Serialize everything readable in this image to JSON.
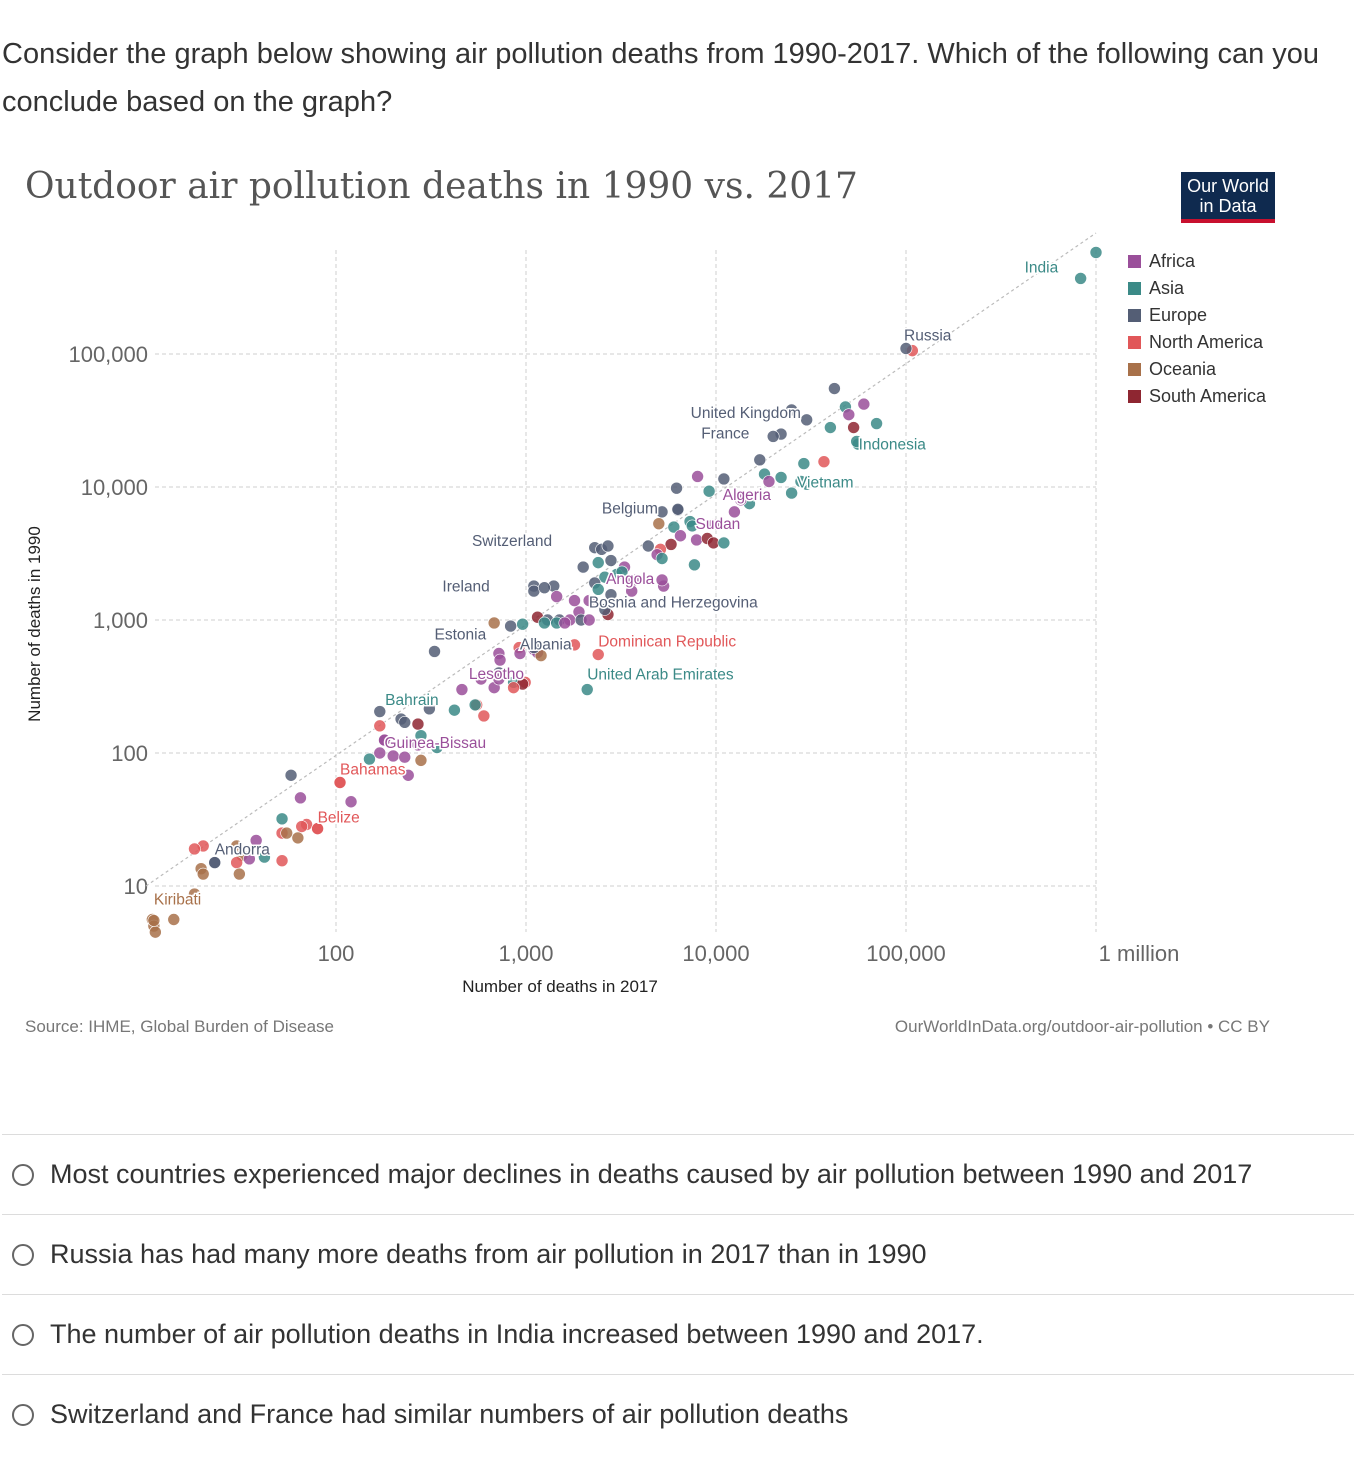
{
  "question": {
    "text": "Consider the graph below showing air pollution deaths from 1990-2017. Which of the following can you conclude based on the graph?"
  },
  "logo": {
    "line1": "Our World",
    "line2": "in Data"
  },
  "chart_data": {
    "type": "scatter",
    "title": "Outdoor air pollution deaths in 1990 vs. 2017",
    "xlabel": "Number of deaths in 2017",
    "ylabel": "Number of deaths in 1990",
    "xscale": "log",
    "yscale": "log",
    "xlim": [
      10,
      1000000
    ],
    "ylim": [
      5,
      700000
    ],
    "x_ticks": [
      {
        "value": 100,
        "label": "100"
      },
      {
        "value": 1000,
        "label": "1,000"
      },
      {
        "value": 10000,
        "label": "10,000"
      },
      {
        "value": 100000,
        "label": "100,000"
      },
      {
        "value": 1000000,
        "label": "1 million"
      }
    ],
    "y_ticks": [
      {
        "value": 10,
        "label": "10"
      },
      {
        "value": 100,
        "label": "100"
      },
      {
        "value": 1000,
        "label": "1,000"
      },
      {
        "value": 10000,
        "label": "10,000"
      },
      {
        "value": 100000,
        "label": "100,000"
      }
    ],
    "grid": true,
    "reference_line": "y = x",
    "legend_position": "right",
    "legend": [
      {
        "name": "Africa",
        "color": "#9a4f9a"
      },
      {
        "name": "Asia",
        "color": "#3b8a87"
      },
      {
        "name": "Europe",
        "color": "#545e75"
      },
      {
        "name": "North America",
        "color": "#e15759"
      },
      {
        "name": "Oceania",
        "color": "#a8714a"
      },
      {
        "name": "South America",
        "color": "#8e2631"
      }
    ],
    "labeled_points": [
      {
        "label": "India",
        "x": 830000,
        "y": 370000,
        "region": "Asia"
      },
      {
        "label": "Russia",
        "x": 100000,
        "y": 110000,
        "region": "Europe"
      },
      {
        "label": "United Kingdom",
        "x": 30000,
        "y": 32000,
        "region": "Europe"
      },
      {
        "label": "France",
        "x": 20000,
        "y": 24000,
        "region": "Europe"
      },
      {
        "label": "Indonesia",
        "x": 55000,
        "y": 22000,
        "region": "Asia"
      },
      {
        "label": "Vietnam",
        "x": 28000,
        "y": 11000,
        "region": "Asia"
      },
      {
        "label": "Algeria",
        "x": 13500,
        "y": 8000,
        "region": "Africa"
      },
      {
        "label": "Belgium",
        "x": 6300,
        "y": 6800,
        "region": "Europe"
      },
      {
        "label": "Sudan",
        "x": 9700,
        "y": 5200,
        "region": "Africa"
      },
      {
        "label": "Switzerland",
        "x": 2700,
        "y": 3600,
        "region": "Europe"
      },
      {
        "label": "Angola",
        "x": 5200,
        "y": 2000,
        "region": "Africa"
      },
      {
        "label": "Ireland",
        "x": 1250,
        "y": 1750,
        "region": "Europe"
      },
      {
        "label": "Bosnia and Herzegovina",
        "x": 2600,
        "y": 1200,
        "region": "Europe"
      },
      {
        "label": "Estonia",
        "x": 330,
        "y": 580,
        "region": "Europe"
      },
      {
        "label": "Albania",
        "x": 1100,
        "y": 620,
        "region": "Europe"
      },
      {
        "label": "Dominican Republic",
        "x": 2400,
        "y": 550,
        "region": "North America"
      },
      {
        "label": "Lesotho",
        "x": 720,
        "y": 360,
        "region": "Africa"
      },
      {
        "label": "United Arab Emirates",
        "x": 2100,
        "y": 300,
        "region": "Asia"
      },
      {
        "label": "Bahrain",
        "x": 540,
        "y": 230,
        "region": "Asia"
      },
      {
        "label": "Guinea-Bissau",
        "x": 180,
        "y": 125,
        "region": "Africa"
      },
      {
        "label": "Bahamas",
        "x": 105,
        "y": 60,
        "region": "North America"
      },
      {
        "label": "Belize",
        "x": 80,
        "y": 27,
        "region": "North America"
      },
      {
        "label": "Andorra",
        "x": 23,
        "y": 15,
        "region": "Europe"
      },
      {
        "label": "Kiribati",
        "x": 11,
        "y": 5.5,
        "region": "Oceania"
      }
    ],
    "points": [
      {
        "x": 1000000,
        "y": 580000,
        "region": "Asia"
      },
      {
        "x": 108000,
        "y": 106000,
        "region": "North America"
      },
      {
        "x": 42000,
        "y": 55000,
        "region": "Europe"
      },
      {
        "x": 25000,
        "y": 38000,
        "region": "Europe"
      },
      {
        "x": 48000,
        "y": 40000,
        "region": "Asia"
      },
      {
        "x": 60000,
        "y": 42000,
        "region": "Africa"
      },
      {
        "x": 50000,
        "y": 35000,
        "region": "Africa"
      },
      {
        "x": 70000,
        "y": 30000,
        "region": "Asia"
      },
      {
        "x": 40000,
        "y": 28000,
        "region": "Asia"
      },
      {
        "x": 53000,
        "y": 28000,
        "region": "South America"
      },
      {
        "x": 22000,
        "y": 25000,
        "region": "Europe"
      },
      {
        "x": 56000,
        "y": 21000,
        "region": "Asia"
      },
      {
        "x": 17000,
        "y": 16000,
        "region": "Europe"
      },
      {
        "x": 37000,
        "y": 15500,
        "region": "North America"
      },
      {
        "x": 29000,
        "y": 15000,
        "region": "Asia"
      },
      {
        "x": 18000,
        "y": 12500,
        "region": "Asia"
      },
      {
        "x": 22000,
        "y": 11800,
        "region": "Asia"
      },
      {
        "x": 11000,
        "y": 11500,
        "region": "Europe"
      },
      {
        "x": 19000,
        "y": 11000,
        "region": "Africa"
      },
      {
        "x": 30000,
        "y": 10500,
        "region": "Asia"
      },
      {
        "x": 8000,
        "y": 12000,
        "region": "Africa"
      },
      {
        "x": 6200,
        "y": 9800,
        "region": "Europe"
      },
      {
        "x": 9200,
        "y": 9300,
        "region": "Asia"
      },
      {
        "x": 25000,
        "y": 9000,
        "region": "Asia"
      },
      {
        "x": 15000,
        "y": 7500,
        "region": "Asia"
      },
      {
        "x": 12500,
        "y": 6500,
        "region": "Africa"
      },
      {
        "x": 5200,
        "y": 6500,
        "region": "Europe"
      },
      {
        "x": 6300,
        "y": 6700,
        "region": "Europe"
      },
      {
        "x": 7300,
        "y": 5500,
        "region": "Asia"
      },
      {
        "x": 5000,
        "y": 5300,
        "region": "Oceania"
      },
      {
        "x": 6000,
        "y": 5000,
        "region": "Asia"
      },
      {
        "x": 7500,
        "y": 5100,
        "region": "Asia"
      },
      {
        "x": 6500,
        "y": 4300,
        "region": "Africa"
      },
      {
        "x": 7900,
        "y": 4000,
        "region": "Africa"
      },
      {
        "x": 9000,
        "y": 4100,
        "region": "South America"
      },
      {
        "x": 9700,
        "y": 3800,
        "region": "South America"
      },
      {
        "x": 11000,
        "y": 3800,
        "region": "Asia"
      },
      {
        "x": 5800,
        "y": 3700,
        "region": "South America"
      },
      {
        "x": 4400,
        "y": 3600,
        "region": "Europe"
      },
      {
        "x": 5100,
        "y": 3400,
        "region": "North America"
      },
      {
        "x": 2300,
        "y": 3500,
        "region": "Europe"
      },
      {
        "x": 2500,
        "y": 3400,
        "region": "Europe"
      },
      {
        "x": 4900,
        "y": 3100,
        "region": "Africa"
      },
      {
        "x": 5200,
        "y": 2900,
        "region": "Asia"
      },
      {
        "x": 2400,
        "y": 2700,
        "region": "Asia"
      },
      {
        "x": 2800,
        "y": 2800,
        "region": "Europe"
      },
      {
        "x": 3300,
        "y": 2500,
        "region": "Africa"
      },
      {
        "x": 2000,
        "y": 2500,
        "region": "Europe"
      },
      {
        "x": 3000,
        "y": 2200,
        "region": "Asia"
      },
      {
        "x": 3200,
        "y": 2300,
        "region": "Asia"
      },
      {
        "x": 7700,
        "y": 2600,
        "region": "Asia"
      },
      {
        "x": 2600,
        "y": 2100,
        "region": "Asia"
      },
      {
        "x": 3700,
        "y": 2000,
        "region": "Africa"
      },
      {
        "x": 2300,
        "y": 1900,
        "region": "Europe"
      },
      {
        "x": 2400,
        "y": 1700,
        "region": "Asia"
      },
      {
        "x": 5300,
        "y": 1800,
        "region": "Africa"
      },
      {
        "x": 1100,
        "y": 1800,
        "region": "Europe"
      },
      {
        "x": 1400,
        "y": 1800,
        "region": "Europe"
      },
      {
        "x": 1100,
        "y": 1650,
        "region": "Europe"
      },
      {
        "x": 3600,
        "y": 1650,
        "region": "Africa"
      },
      {
        "x": 1450,
        "y": 1500,
        "region": "Africa"
      },
      {
        "x": 1800,
        "y": 1400,
        "region": "Africa"
      },
      {
        "x": 2150,
        "y": 1400,
        "region": "Africa"
      },
      {
        "x": 2800,
        "y": 1550,
        "region": "Europe"
      },
      {
        "x": 1900,
        "y": 1150,
        "region": "Africa"
      },
      {
        "x": 2700,
        "y": 1100,
        "region": "South America"
      },
      {
        "x": 1150,
        "y": 1050,
        "region": "South America"
      },
      {
        "x": 1300,
        "y": 1000,
        "region": "Europe"
      },
      {
        "x": 1500,
        "y": 1000,
        "region": "Europe"
      },
      {
        "x": 1700,
        "y": 1000,
        "region": "Africa"
      },
      {
        "x": 1950,
        "y": 1000,
        "region": "Europe"
      },
      {
        "x": 2150,
        "y": 1000,
        "region": "Africa"
      },
      {
        "x": 960,
        "y": 930,
        "region": "Asia"
      },
      {
        "x": 830,
        "y": 900,
        "region": "Europe"
      },
      {
        "x": 1250,
        "y": 950,
        "region": "Asia"
      },
      {
        "x": 1450,
        "y": 950,
        "region": "Asia"
      },
      {
        "x": 680,
        "y": 950,
        "region": "Oceania"
      },
      {
        "x": 1600,
        "y": 950,
        "region": "Africa"
      },
      {
        "x": 1800,
        "y": 650,
        "region": "North America"
      },
      {
        "x": 920,
        "y": 620,
        "region": "North America"
      },
      {
        "x": 1100,
        "y": 600,
        "region": "Africa"
      },
      {
        "x": 1150,
        "y": 570,
        "region": "Africa"
      },
      {
        "x": 930,
        "y": 560,
        "region": "Africa"
      },
      {
        "x": 720,
        "y": 560,
        "region": "Africa"
      },
      {
        "x": 1200,
        "y": 540,
        "region": "Oceania"
      },
      {
        "x": 730,
        "y": 500,
        "region": "Africa"
      },
      {
        "x": 720,
        "y": 400,
        "region": "Europe"
      },
      {
        "x": 580,
        "y": 360,
        "region": "Africa"
      },
      {
        "x": 860,
        "y": 340,
        "region": "Asia"
      },
      {
        "x": 990,
        "y": 340,
        "region": "North America"
      },
      {
        "x": 960,
        "y": 330,
        "region": "South America"
      },
      {
        "x": 680,
        "y": 310,
        "region": "Africa"
      },
      {
        "x": 860,
        "y": 310,
        "region": "North America"
      },
      {
        "x": 460,
        "y": 300,
        "region": "Africa"
      },
      {
        "x": 550,
        "y": 230,
        "region": "North America"
      },
      {
        "x": 310,
        "y": 215,
        "region": "Europe"
      },
      {
        "x": 420,
        "y": 210,
        "region": "Asia"
      },
      {
        "x": 170,
        "y": 205,
        "region": "Europe"
      },
      {
        "x": 600,
        "y": 190,
        "region": "North America"
      },
      {
        "x": 220,
        "y": 180,
        "region": "Europe"
      },
      {
        "x": 230,
        "y": 170,
        "region": "Europe"
      },
      {
        "x": 270,
        "y": 165,
        "region": "South America"
      },
      {
        "x": 170,
        "y": 160,
        "region": "North America"
      },
      {
        "x": 280,
        "y": 135,
        "region": "Asia"
      },
      {
        "x": 180,
        "y": 125,
        "region": "Africa"
      },
      {
        "x": 340,
        "y": 110,
        "region": "Asia"
      },
      {
        "x": 270,
        "y": 115,
        "region": "Africa"
      },
      {
        "x": 170,
        "y": 100,
        "region": "Africa"
      },
      {
        "x": 200,
        "y": 95,
        "region": "Africa"
      },
      {
        "x": 230,
        "y": 93,
        "region": "Africa"
      },
      {
        "x": 150,
        "y": 90,
        "region": "Asia"
      },
      {
        "x": 280,
        "y": 88,
        "region": "Oceania"
      },
      {
        "x": 240,
        "y": 68,
        "region": "Africa"
      },
      {
        "x": 58,
        "y": 68,
        "region": "Europe"
      },
      {
        "x": 105,
        "y": 60,
        "region": "North America"
      },
      {
        "x": 65,
        "y": 46,
        "region": "Africa"
      },
      {
        "x": 120,
        "y": 43,
        "region": "Africa"
      },
      {
        "x": 52,
        "y": 32,
        "region": "Asia"
      },
      {
        "x": 70,
        "y": 29,
        "region": "North America"
      },
      {
        "x": 80,
        "y": 27,
        "region": "North America"
      },
      {
        "x": 66,
        "y": 28,
        "region": "North America"
      },
      {
        "x": 52,
        "y": 25,
        "region": "North America"
      },
      {
        "x": 55,
        "y": 25,
        "region": "Oceania"
      },
      {
        "x": 63,
        "y": 23,
        "region": "Oceania"
      },
      {
        "x": 38,
        "y": 22,
        "region": "Africa"
      },
      {
        "x": 30,
        "y": 20,
        "region": "Oceania"
      },
      {
        "x": 20,
        "y": 20,
        "region": "North America"
      },
      {
        "x": 18,
        "y": 19,
        "region": "North America"
      },
      {
        "x": 32,
        "y": 17,
        "region": "Oceania"
      },
      {
        "x": 42,
        "y": 16.5,
        "region": "Asia"
      },
      {
        "x": 35,
        "y": 16,
        "region": "Africa"
      },
      {
        "x": 23,
        "y": 15,
        "region": "Europe"
      },
      {
        "x": 30,
        "y": 15,
        "region": "North America"
      },
      {
        "x": 52,
        "y": 15.5,
        "region": "North America"
      },
      {
        "x": 19.5,
        "y": 13.5,
        "region": "Oceania"
      },
      {
        "x": 20,
        "y": 12.3,
        "region": "Oceania"
      },
      {
        "x": 31,
        "y": 12.3,
        "region": "Oceania"
      },
      {
        "x": 18,
        "y": 8.7,
        "region": "Oceania"
      },
      {
        "x": 10.8,
        "y": 5.6,
        "region": "Oceania"
      },
      {
        "x": 14,
        "y": 5.6,
        "region": "Oceania"
      },
      {
        "x": 11,
        "y": 5.0,
        "region": "Oceania"
      },
      {
        "x": 11.2,
        "y": 4.5,
        "region": "Oceania"
      }
    ]
  },
  "source": "Source: IHME, Global Burden of Disease",
  "credit": "OurWorldInData.org/outdoor-air-pollution • CC BY",
  "options": [
    {
      "label": "Most countries experienced major declines in deaths caused by air pollution between 1990 and 2017"
    },
    {
      "label": "Russia has had many more deaths from air pollution in 2017 than in 1990"
    },
    {
      "label": "The number of air pollution deaths in India increased between 1990 and 2017."
    },
    {
      "label": "Switzerland and France had similar numbers of air pollution deaths"
    }
  ]
}
